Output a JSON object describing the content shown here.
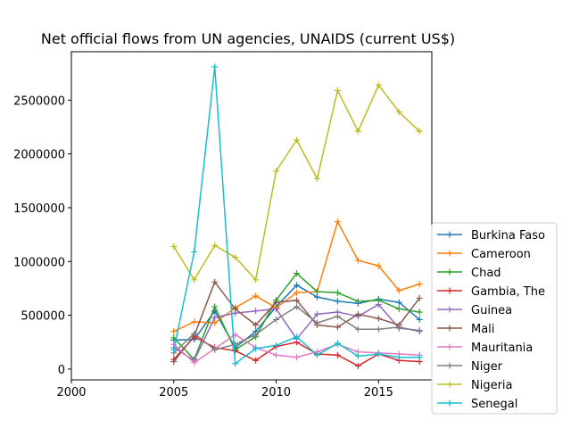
{
  "chart_data": {
    "type": "line",
    "title": "Net official flows from UN agencies, UNAIDS (current US$)",
    "xlabel": "",
    "ylabel": "",
    "xlim": [
      2000,
      2017.6
    ],
    "ylim": [
      -100000,
      2950000
    ],
    "xticks": [
      2000,
      2005,
      2010,
      2015
    ],
    "xtick_labels": [
      "2000",
      "2005",
      "2010",
      "2015"
    ],
    "yticks": [
      0,
      500000,
      1000000,
      1500000,
      2000000,
      2500000
    ],
    "ytick_labels": [
      "0",
      "500000",
      "1000000",
      "1500000",
      "2000000",
      "2500000"
    ],
    "grid": false,
    "legend_position": "right-outside-bottom",
    "x": [
      2005,
      2006,
      2007,
      2008,
      2009,
      2010,
      2011,
      2012,
      2013,
      2014,
      2015,
      2016,
      2017
    ],
    "series": [
      {
        "name": "Burkina Faso",
        "color": "#1f77b4",
        "values": [
          270000,
          275000,
          540000,
          200000,
          350000,
          580000,
          780000,
          670000,
          630000,
          610000,
          650000,
          620000,
          460000
        ]
      },
      {
        "name": "Cameroon",
        "color": "#ff7f0e",
        "values": [
          350000,
          440000,
          430000,
          570000,
          680000,
          570000,
          710000,
          720000,
          1370000,
          1010000,
          960000,
          730000,
          790000
        ]
      },
      {
        "name": "Chad",
        "color": "#2ca02c",
        "values": [
          290000,
          90000,
          580000,
          180000,
          300000,
          640000,
          890000,
          720000,
          710000,
          630000,
          640000,
          560000,
          530000
        ]
      },
      {
        "name": "Gambia, The",
        "color": "#d62728",
        "values": [
          90000,
          300000,
          200000,
          170000,
          80000,
          210000,
          250000,
          140000,
          130000,
          30000,
          140000,
          80000,
          70000
        ]
      },
      {
        "name": "Guinea",
        "color": "#9467bd",
        "values": [
          200000,
          80000,
          480000,
          520000,
          540000,
          560000,
          280000,
          510000,
          530000,
          490000,
          600000,
          380000,
          360000
        ]
      },
      {
        "name": "Mali",
        "color": "#8c564b",
        "values": [
          70000,
          310000,
          810000,
          560000,
          410000,
          620000,
          640000,
          410000,
          390000,
          510000,
          470000,
          410000,
          660000
        ]
      },
      {
        "name": "Mauritania",
        "color": "#e377c2",
        "values": [
          230000,
          60000,
          190000,
          320000,
          200000,
          130000,
          110000,
          160000,
          230000,
          160000,
          150000,
          140000,
          130000
        ]
      },
      {
        "name": "Niger",
        "color": "#7f7f7f",
        "values": [
          150000,
          330000,
          180000,
          230000,
          320000,
          460000,
          580000,
          430000,
          490000,
          370000,
          370000,
          390000,
          350000
        ]
      },
      {
        "name": "Nigeria",
        "color": "#bcbd22",
        "values": [
          1140000,
          830000,
          1150000,
          1040000,
          830000,
          1840000,
          2130000,
          1770000,
          2590000,
          2210000,
          2640000,
          2390000,
          2210000
        ]
      },
      {
        "name": "Senegal",
        "color": "#17becf",
        "values": [
          180000,
          1090000,
          2810000,
          50000,
          190000,
          220000,
          300000,
          130000,
          240000,
          120000,
          140000,
          110000,
          110000
        ]
      }
    ]
  }
}
